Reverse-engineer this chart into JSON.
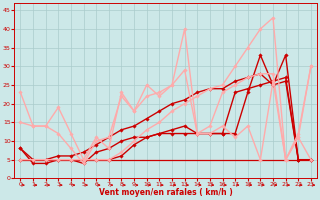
{
  "xlabel": "Vent moyen/en rafales ( km/h )",
  "xlim": [
    -0.5,
    23.5
  ],
  "ylim": [
    0,
    47
  ],
  "yticks": [
    0,
    5,
    10,
    15,
    20,
    25,
    30,
    35,
    40,
    45
  ],
  "xticks": [
    0,
    1,
    2,
    3,
    4,
    5,
    6,
    7,
    8,
    9,
    10,
    11,
    12,
    13,
    14,
    15,
    16,
    17,
    18,
    19,
    20,
    21,
    22,
    23
  ],
  "bg_color": "#cce8e8",
  "grid_color": "#aacccc",
  "lines": [
    {
      "x": [
        0,
        1,
        2,
        3,
        4,
        5,
        6,
        7,
        8,
        9,
        10,
        11,
        12,
        13,
        14,
        15,
        16,
        17,
        18,
        19,
        20,
        21,
        22,
        23
      ],
      "y": [
        8,
        4,
        4,
        5,
        5,
        4,
        7,
        8,
        10,
        11,
        11,
        12,
        12,
        12,
        12,
        12,
        12,
        12,
        23,
        33,
        25,
        33,
        5,
        5
      ],
      "color": "#cc0000",
      "lw": 1.0,
      "marker": "D",
      "ms": 1.8
    },
    {
      "x": [
        0,
        1,
        2,
        3,
        4,
        5,
        6,
        7,
        8,
        9,
        10,
        11,
        12,
        13,
        14,
        15,
        16,
        17,
        18,
        19,
        20,
        21,
        22,
        23
      ],
      "y": [
        5,
        5,
        5,
        5,
        5,
        5,
        5,
        5,
        5,
        5,
        5,
        5,
        5,
        5,
        5,
        5,
        5,
        5,
        5,
        5,
        5,
        5,
        5,
        5
      ],
      "color": "#cc0000",
      "lw": 0.9,
      "marker": null,
      "ms": 0
    },
    {
      "x": [
        0,
        1,
        2,
        3,
        4,
        5,
        6,
        7,
        8,
        9,
        10,
        11,
        12,
        13,
        14,
        15,
        16,
        17,
        18,
        19,
        20,
        21,
        22,
        23
      ],
      "y": [
        5,
        5,
        5,
        5,
        5,
        5,
        5,
        5,
        6,
        9,
        11,
        12,
        13,
        14,
        12,
        12,
        12,
        23,
        24,
        25,
        26,
        27,
        5,
        5
      ],
      "color": "#cc0000",
      "lw": 1.0,
      "marker": "D",
      "ms": 1.8
    },
    {
      "x": [
        0,
        1,
        2,
        3,
        4,
        5,
        6,
        7,
        8,
        9,
        10,
        11,
        12,
        13,
        14,
        15,
        16,
        17,
        18,
        19,
        20,
        21,
        22,
        23
      ],
      "y": [
        8,
        5,
        5,
        6,
        6,
        7,
        9,
        11,
        13,
        14,
        16,
        18,
        20,
        21,
        23,
        24,
        24,
        26,
        27,
        28,
        25,
        26,
        5,
        5
      ],
      "color": "#cc0000",
      "lw": 1.0,
      "marker": "D",
      "ms": 1.8
    },
    {
      "x": [
        0,
        1,
        2,
        3,
        4,
        5,
        6,
        7,
        8,
        9,
        10,
        11,
        12,
        13,
        14,
        15,
        16,
        17,
        18,
        19,
        20,
        21,
        22,
        23
      ],
      "y": [
        23,
        14,
        14,
        19,
        12,
        5,
        11,
        8,
        23,
        18,
        25,
        22,
        25,
        40,
        12,
        12,
        14,
        11,
        14,
        5,
        26,
        5,
        11,
        30
      ],
      "color": "#ffaaaa",
      "lw": 1.0,
      "marker": "D",
      "ms": 1.8
    },
    {
      "x": [
        0,
        1,
        2,
        3,
        4,
        5,
        6,
        7,
        8,
        9,
        10,
        11,
        12,
        13,
        14,
        15,
        16,
        17,
        18,
        19,
        20,
        21,
        22,
        23
      ],
      "y": [
        15,
        14,
        14,
        12,
        8,
        4,
        10,
        11,
        22,
        18,
        22,
        23,
        25,
        29,
        12,
        14,
        23,
        25,
        27,
        28,
        28,
        5,
        12,
        30
      ],
      "color": "#ffaaaa",
      "lw": 1.0,
      "marker": "D",
      "ms": 1.8
    },
    {
      "x": [
        0,
        1,
        2,
        3,
        4,
        5,
        6,
        7,
        8,
        9,
        10,
        11,
        12,
        13,
        14,
        15,
        16,
        17,
        18,
        19,
        20,
        21,
        22,
        23
      ],
      "y": [
        5,
        5,
        5,
        5,
        5,
        5,
        5,
        5,
        7,
        10,
        13,
        15,
        18,
        20,
        22,
        24,
        25,
        30,
        35,
        40,
        43,
        5,
        11,
        5
      ],
      "color": "#ffaaaa",
      "lw": 1.0,
      "marker": "D",
      "ms": 1.8
    }
  ]
}
